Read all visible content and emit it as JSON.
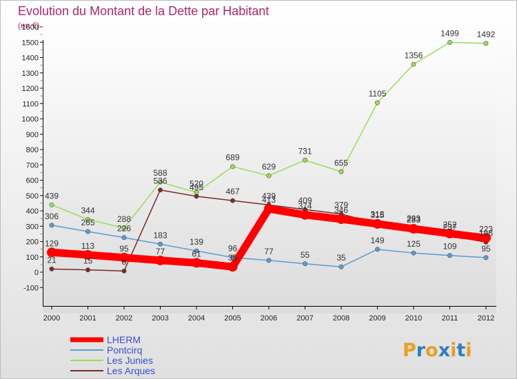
{
  "chart_data": {
    "type": "line",
    "title": "Evolution du Montant de la Dette par Habitant",
    "subtitle": "(en €)",
    "x": [
      "2000",
      "2001",
      "2002",
      "2003",
      "2004",
      "2005",
      "2006",
      "2007",
      "2008",
      "2009",
      "2010",
      "2011",
      "2012"
    ],
    "y_ticks": [
      "-100",
      "0",
      "100",
      "200",
      "300",
      "400",
      "500",
      "600",
      "700",
      "800",
      "900",
      "1000",
      "1100",
      "1200",
      "1300",
      "1400",
      "1500",
      "1600"
    ],
    "ylim": [
      -100,
      1600
    ],
    "grid": false,
    "legend_position": "bottom-left",
    "series": [
      {
        "name": "LHERM",
        "color": "#ff0000",
        "values": [
          129,
          113,
          95,
          77,
          61,
          35,
          413,
          374,
          346,
          315,
          283,
          252,
          223
        ],
        "labels": [
          "129",
          "113",
          "95",
          "77",
          "61",
          "35",
          "413",
          "374",
          "346",
          "315",
          "283",
          "252",
          "223"
        ]
      },
      {
        "name": "Pontcirq",
        "color": "#5a9bd4",
        "values": [
          306,
          265,
          226,
          183,
          139,
          96,
          77,
          55,
          35,
          149,
          125,
          109,
          95
        ],
        "labels": [
          "306",
          "265",
          "226",
          "183",
          "139",
          "96",
          "77",
          "55",
          "35",
          "149",
          "125",
          "109",
          "95"
        ]
      },
      {
        "name": "Les Junies",
        "color": "#99dd55",
        "values": [
          439,
          344,
          288,
          588,
          520,
          689,
          629,
          731,
          655,
          1105,
          1356,
          1499,
          1492
        ],
        "labels": [
          "439",
          "344",
          "288",
          "588",
          "520",
          "689",
          "629",
          "731",
          "655",
          "1105",
          "1356",
          "1499",
          "1492"
        ]
      },
      {
        "name": "Les Arques",
        "color": "#7a2a2a",
        "values": [
          21,
          15,
          8,
          536,
          495,
          467,
          439,
          409,
          379,
          318,
          293,
          237,
          196
        ],
        "labels": [
          "21",
          "15",
          "8",
          "536",
          "495",
          "467",
          "439",
          "409",
          "379",
          "318",
          "293",
          "237",
          "196"
        ]
      }
    ]
  },
  "brand": {
    "text": "Proxiti"
  }
}
